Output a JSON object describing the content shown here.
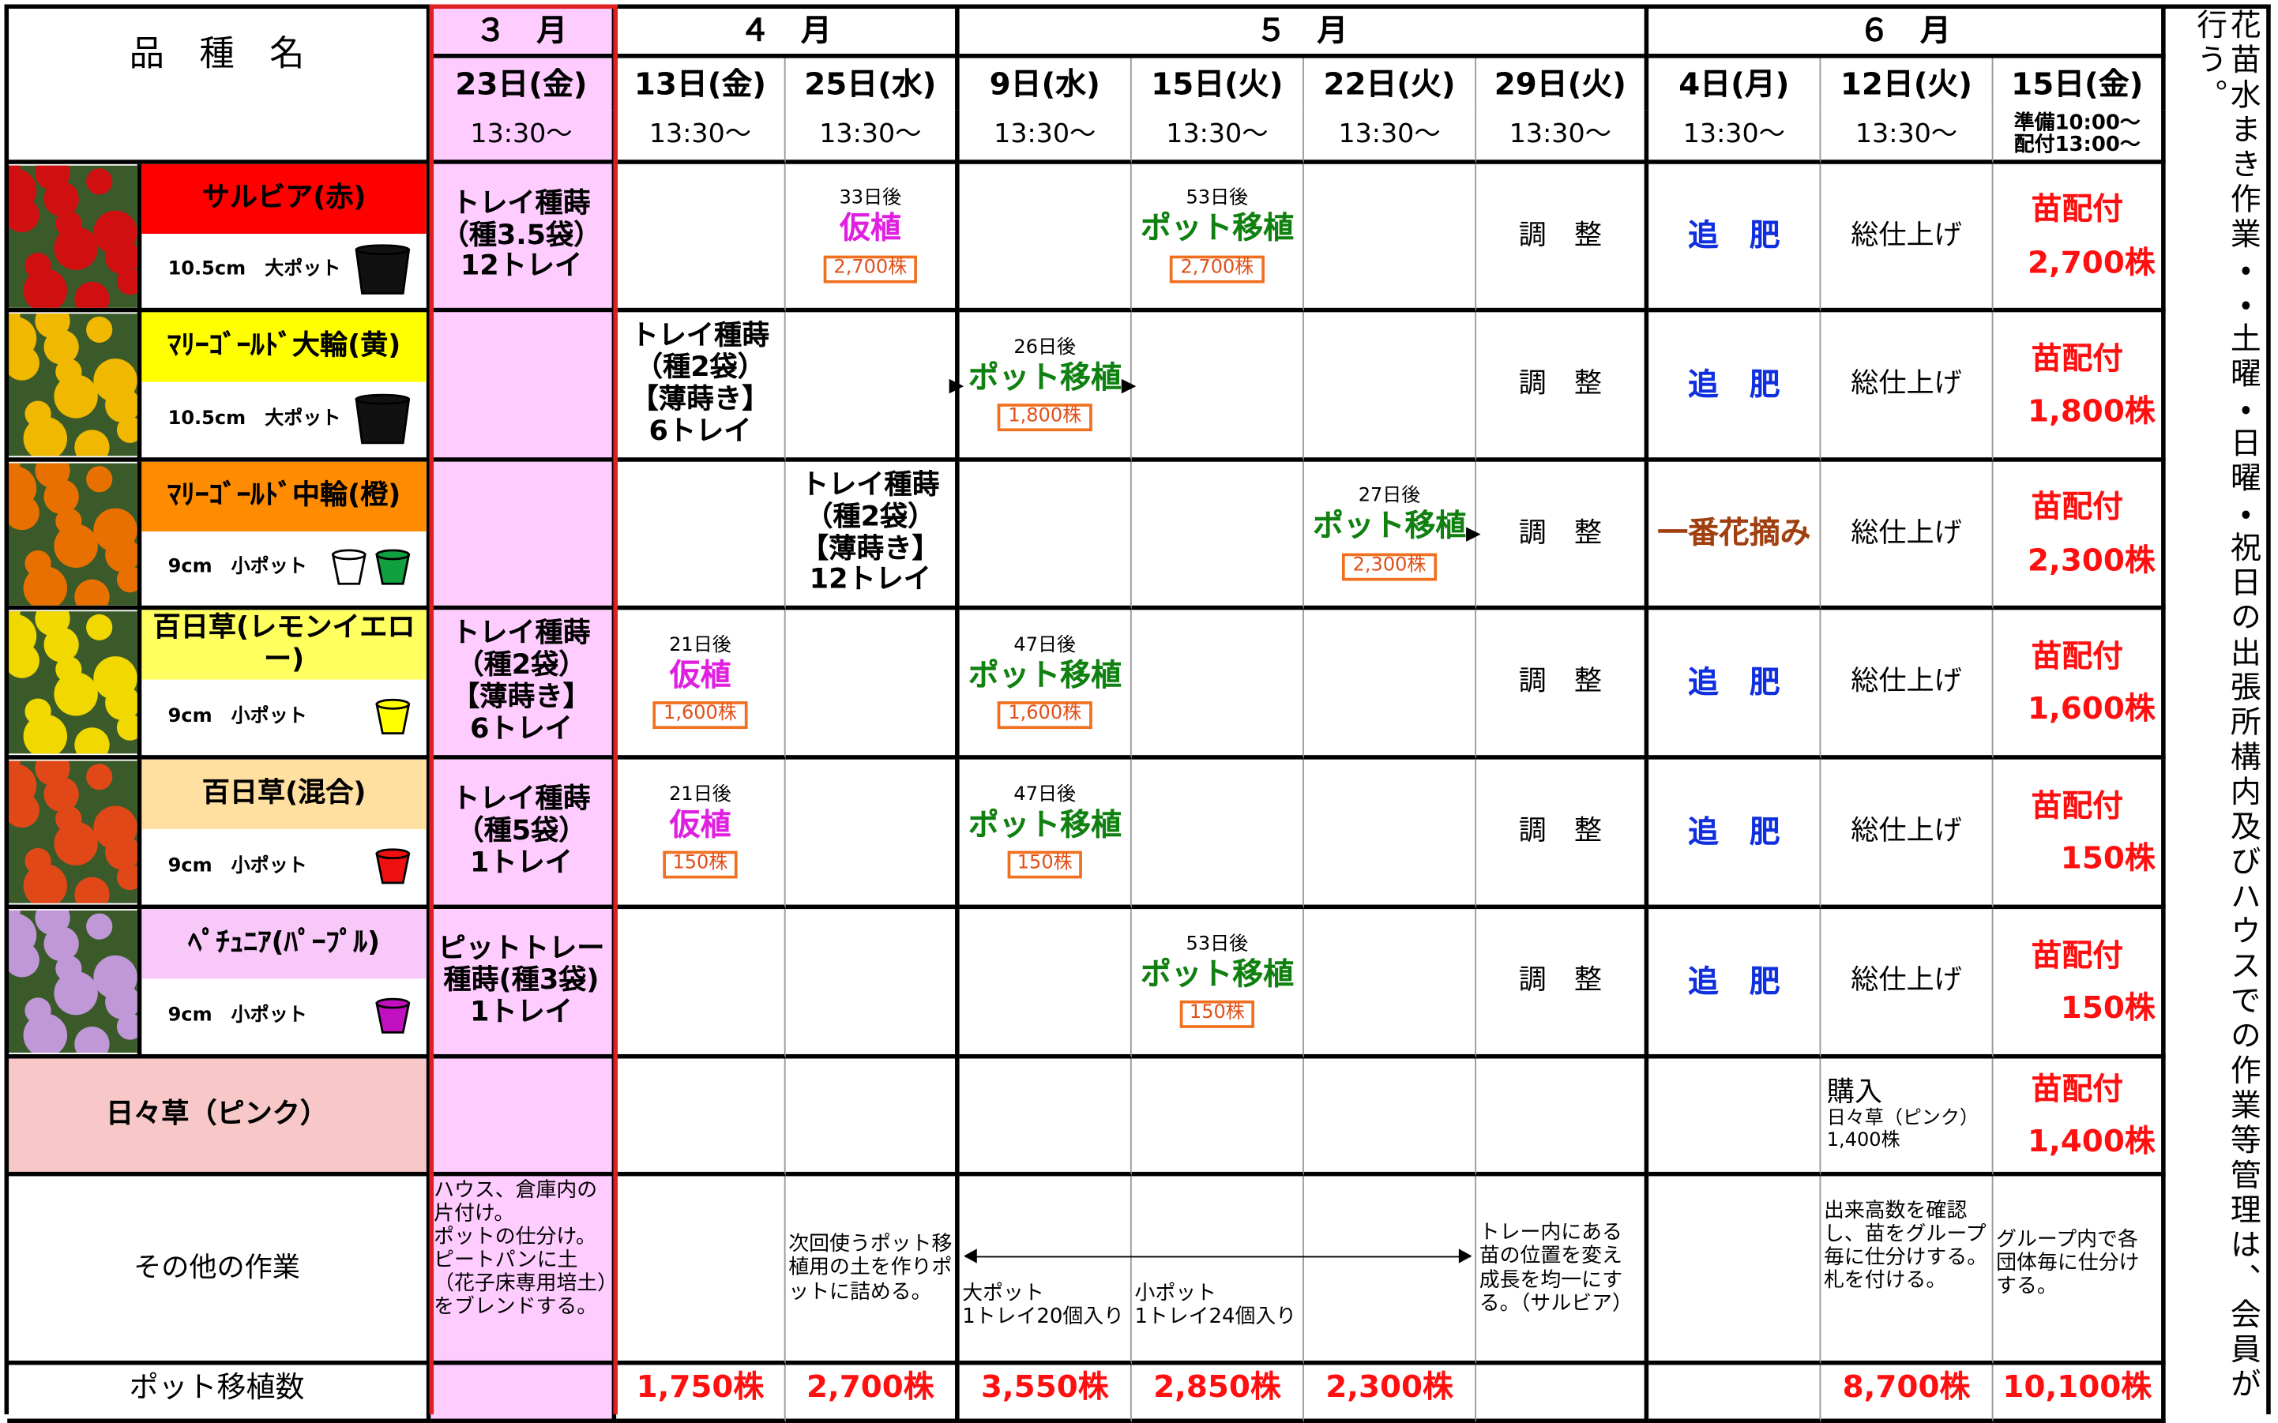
{
  "header": {
    "variety": "品　種　名",
    "months": [
      "３　月",
      "４　月",
      "５　月",
      "６　月"
    ],
    "dates": [
      "23日(金)",
      "13日(金)",
      "25日(水)",
      "9日(水)",
      "15日(火)",
      "22日(火)",
      "29日(火)",
      "4日(月)",
      "12日(火)",
      "15日(金)"
    ],
    "times": [
      "13:30～",
      "13:30～",
      "13:30～",
      "13:30～",
      "13:30～",
      "13:30～",
      "13:30～",
      "13:30～",
      "13:30～",
      "準備10:00～\n配付13:00～"
    ]
  },
  "side_note": "花苗水まき作業・・土曜・日曜・祝日の出張所構内及びハウスでの作業等管理は、会員が行う。",
  "rows": [
    {
      "name": "サルビア(赤)",
      "color": "#ff0000",
      "pot": "10.5cm　大ポット",
      "pots": [
        "#111111"
      ],
      "cells": [
        {
          "main": "トレイ種蒔\n（種3.5袋）\n12トレイ"
        },
        null,
        {
          "small": "33日後",
          "main": "仮植",
          "color": "#e020e0",
          "badge": "2,700株"
        },
        null,
        {
          "small": "53日後",
          "main": "ポット移植",
          "color": "#108010",
          "badge": "2,700株"
        },
        null,
        {
          "main": "調　整"
        },
        {
          "main": "追　肥",
          "color": "#1030e0"
        },
        {
          "main": "総仕上げ"
        },
        {
          "main": "苗配付",
          "color": "#ff1010",
          "sub": "2,700株"
        }
      ]
    },
    {
      "name": "ﾏﾘｰｺﾞｰﾙﾄﾞ大輪(黄)",
      "color": "#ffff00",
      "pot": "10.5cm　大ポット",
      "pots": [
        "#111111"
      ],
      "cells": [
        null,
        {
          "main": "トレイ種蒔\n（種2袋）\n【薄蒔き】\n6トレイ"
        },
        null,
        {
          "small": "26日後",
          "main": "ポット移植",
          "color": "#108010",
          "badge": "1,800株"
        },
        null,
        null,
        {
          "main": "調　整"
        },
        {
          "main": "追　肥",
          "color": "#1030e0"
        },
        {
          "main": "総仕上げ"
        },
        {
          "main": "苗配付",
          "color": "#ff1010",
          "sub": "1,800株"
        }
      ]
    },
    {
      "name": "ﾏﾘｰｺﾞｰﾙﾄﾞ中輪(橙)",
      "color": "#ff8c00",
      "pot": "9cm　小ポット",
      "pots": [
        "#ffffff",
        "#10a040"
      ],
      "cells": [
        null,
        null,
        {
          "main": "トレイ種蒔\n（種2袋）\n【薄蒔き】\n12トレイ"
        },
        null,
        null,
        {
          "small": "27日後",
          "main": "ポット移植",
          "color": "#108010",
          "badge": "2,300株"
        },
        {
          "main": "調　整"
        },
        {
          "main": "一番花摘み",
          "color": "#a04010"
        },
        {
          "main": "総仕上げ"
        },
        {
          "main": "苗配付",
          "color": "#ff1010",
          "sub": "2,300株"
        }
      ]
    },
    {
      "name": "百日草(レモンイエロー)",
      "color": "#ffff60",
      "pot": "9cm　小ポット",
      "pots": [
        "#ffff00"
      ],
      "cells": [
        {
          "main": "トレイ種蒔\n（種2袋）\n【薄蒔き】\n6トレイ"
        },
        {
          "small": "21日後",
          "main": "仮植",
          "color": "#e020e0",
          "badge": "1,600株"
        },
        null,
        {
          "small": "47日後",
          "main": "ポット移植",
          "color": "#108010",
          "badge": "1,600株"
        },
        null,
        null,
        {
          "main": "調　整"
        },
        {
          "main": "追　肥",
          "color": "#1030e0"
        },
        {
          "main": "総仕上げ"
        },
        {
          "main": "苗配付",
          "color": "#ff1010",
          "sub": "1,600株"
        }
      ]
    },
    {
      "name": "百日草(混合)",
      "color": "#ffe0a0",
      "pot": "9cm　小ポット",
      "pots": [
        "#ee1010"
      ],
      "cells": [
        {
          "main": "トレイ種蒔\n（種5袋）\n1トレイ"
        },
        {
          "small": "21日後",
          "main": "仮植",
          "color": "#e020e0",
          "badge": "150株"
        },
        null,
        {
          "small": "47日後",
          "main": "ポット移植",
          "color": "#108010",
          "badge": "150株"
        },
        null,
        null,
        {
          "main": "調　整"
        },
        {
          "main": "追　肥",
          "color": "#1030e0"
        },
        {
          "main": "総仕上げ"
        },
        {
          "main": "苗配付",
          "color": "#ff1010",
          "sub": "150株"
        }
      ]
    },
    {
      "name": "ﾍﾟﾁｭﾆｱ(ﾊﾟｰﾌﾟﾙ)",
      "color": "#f8c8f8",
      "pot": "9cm　小ポット",
      "pots": [
        "#c010c0"
      ],
      "cells": [
        {
          "main": "ピットトレー\n種蒔(種3袋)\n1トレイ"
        },
        null,
        null,
        null,
        {
          "small": "53日後",
          "main": "ポット移植",
          "color": "#108010",
          "badge": "150株"
        },
        null,
        {
          "main": "調　整"
        },
        {
          "main": "追　肥",
          "color": "#1030e0"
        },
        {
          "main": "総仕上げ"
        },
        {
          "main": "苗配付",
          "color": "#ff1010",
          "sub": "150株"
        }
      ]
    },
    {
      "name": "日々草（ピンク）",
      "color": "#f8c8c8",
      "cells": [
        null,
        null,
        null,
        null,
        null,
        null,
        null,
        null,
        {
          "main": "購入",
          "small": "日々草（ピンク）\n1,400株"
        },
        {
          "main": "苗配付",
          "color": "#ff1010",
          "sub": "1,400株"
        }
      ]
    }
  ],
  "other_work": {
    "label": "その他の作業",
    "cells": [
      "ハウス、倉庫内の片付け。\nポットの仕分け。\nピートパンに土（花子床専用培土）をブレンドする。",
      null,
      "次回使うポット移植用の土を作りポットに詰める。",
      "大ポット\n1トレイ20個入り",
      "小ポット\n1トレイ24個入り",
      null,
      "トレー内にある苗の位置を変え成長を均一にする。（サルビア）",
      null,
      "出来高数を確認し、苗をグループ毎に仕分けする。\n札を付ける。",
      "グループ内で各団体毎に仕分けする。"
    ]
  },
  "pot_count": {
    "label": "ポット移植数",
    "cells": [
      null,
      "1,750株",
      "2,700株",
      "3,550株",
      "2,850株",
      "2,300株",
      null,
      null,
      "8,700株",
      "10,100株"
    ]
  }
}
